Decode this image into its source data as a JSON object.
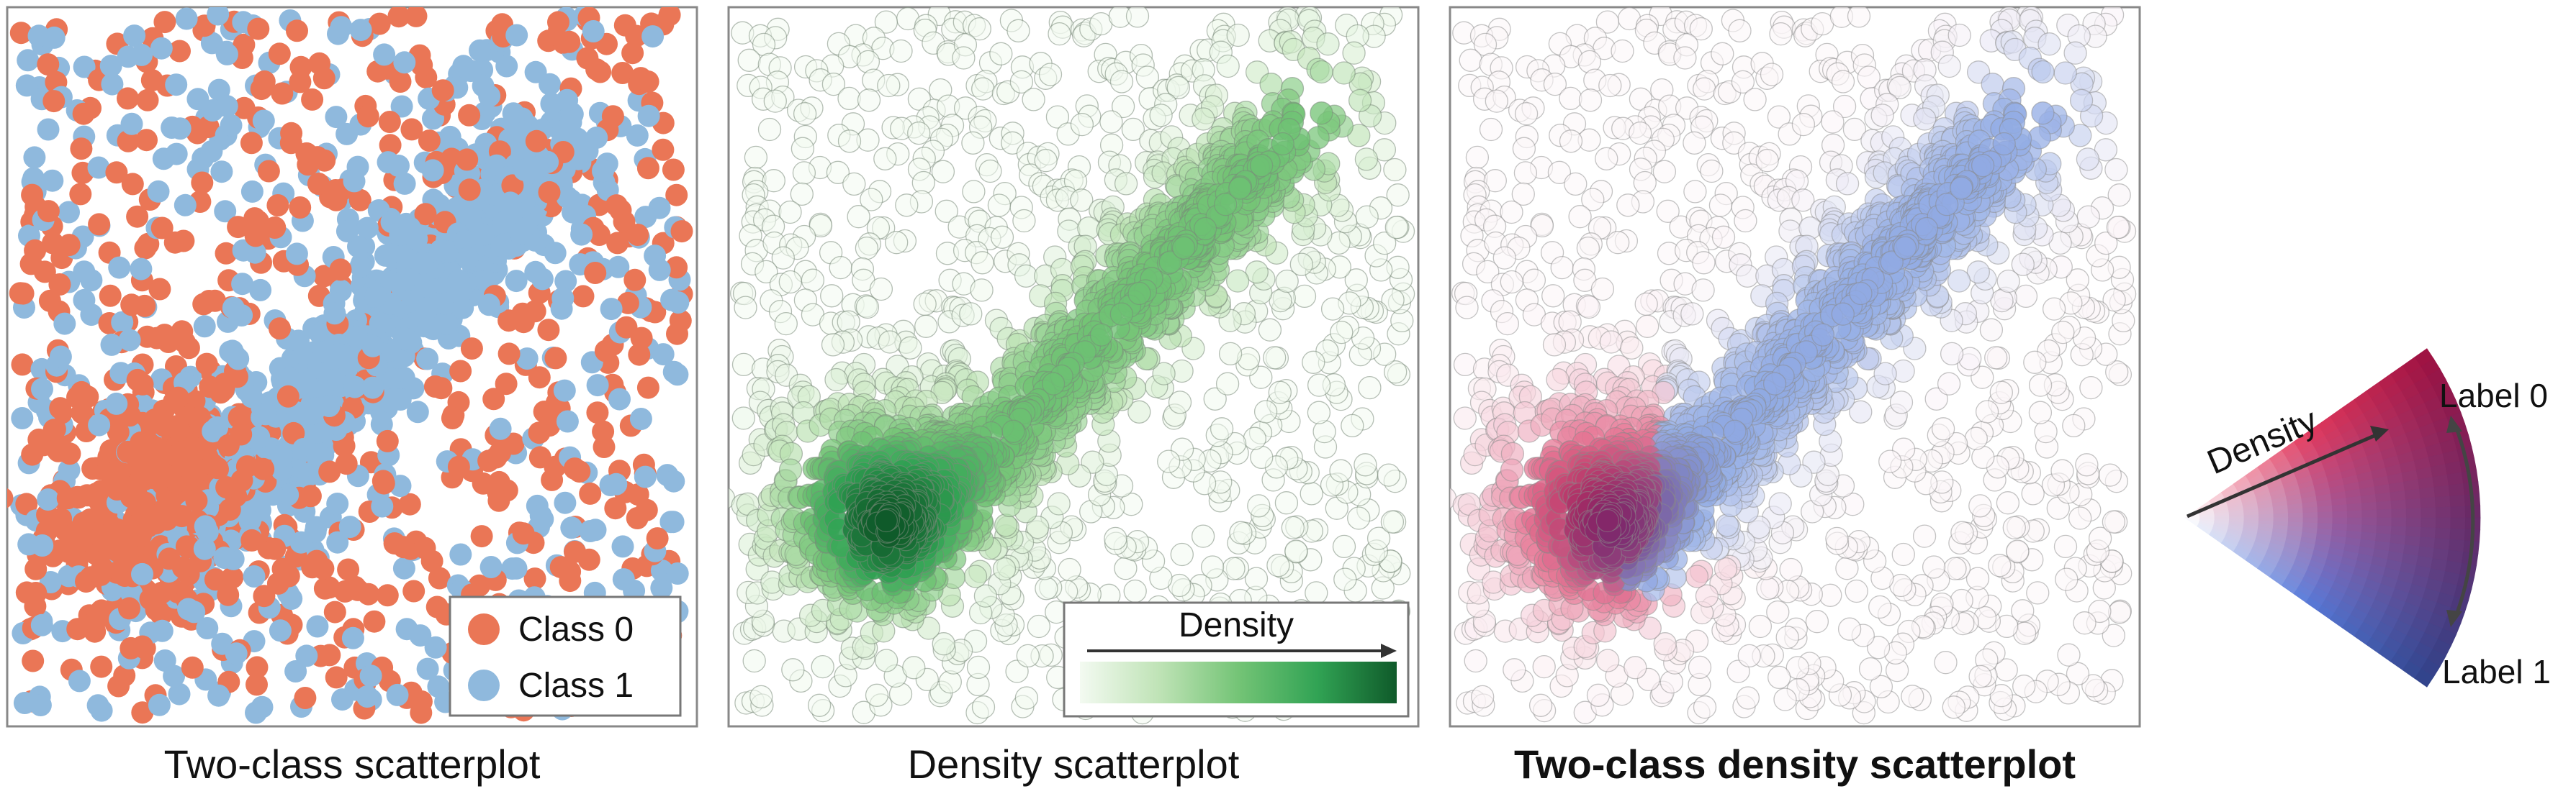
{
  "chart_data": [
    {
      "type": "scatter",
      "title": "Two-class scatterplot",
      "xlabel": "",
      "ylabel": "",
      "legend_position": "bottom-right",
      "legend": [
        "Class 0",
        "Class 1"
      ],
      "colors": {
        "Class 0": "#ea7656",
        "Class 1": "#8fb9dd"
      },
      "series": [
        {
          "name": "Class 0",
          "distribution": "cluster lower-left plus uniform noise",
          "approx_points": 1000
        },
        {
          "name": "Class 1",
          "distribution": "diagonal band toward upper-right plus uniform noise",
          "approx_points": 1000
        }
      ]
    },
    {
      "type": "scatter",
      "title": "Density scatterplot",
      "xlabel": "",
      "ylabel": "",
      "colorbar_label": "Density",
      "colorbar_position": "bottom-right",
      "colormap": [
        "#f3faf1",
        "#bfe3b6",
        "#74c476",
        "#31a354",
        "#0f5a2a"
      ]
    },
    {
      "type": "scatter",
      "title": "Two-class density scatterplot",
      "xlabel": "",
      "ylabel": "",
      "class_colors": {
        "Label 0": "#b3124a",
        "Label 1": "#2d4fa3"
      },
      "legend": {
        "radial_label": "Density",
        "end_labels": [
          "Label 0",
          "Label 1"
        ]
      }
    }
  ]
}
